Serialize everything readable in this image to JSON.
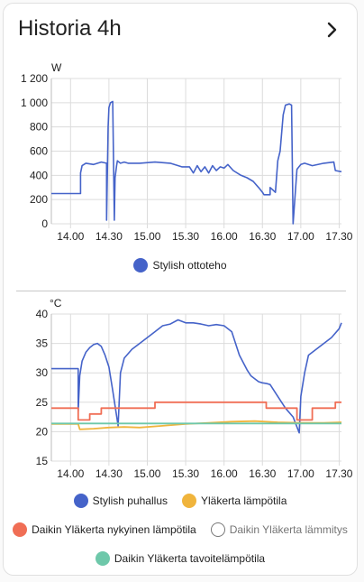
{
  "card": {
    "title": "Historia 4h",
    "chevron_icon": "chevron-right-icon"
  },
  "colors": {
    "blue": "#4563c9",
    "yellow": "#f0b43c",
    "red": "#f06e55",
    "teal": "#6ec8aa",
    "grid": "#dcdcdc"
  },
  "chart_data": [
    {
      "type": "line",
      "title": "",
      "ylabel": "W",
      "ylim": [
        0,
        1200
      ],
      "yticks": [
        0,
        200,
        400,
        600,
        800,
        1000,
        1200
      ],
      "ytick_labels": [
        "0",
        "200",
        "400",
        "600",
        "800",
        "1 000",
        "1 200"
      ],
      "xlim": [
        13.75,
        17.53
      ],
      "xticks": [
        14.0,
        14.5,
        15.0,
        15.5,
        16.0,
        16.5,
        17.0,
        17.5
      ],
      "xtick_labels": [
        "14.00",
        "14.30",
        "15.00",
        "15.30",
        "16.00",
        "16.30",
        "17.00",
        "17.30"
      ],
      "grid": true,
      "series": [
        {
          "name": "Stylish ottoteho",
          "color": "#4563c9",
          "x": [
            13.75,
            14.13,
            14.13,
            14.15,
            14.2,
            14.3,
            14.4,
            14.47,
            14.47,
            14.49,
            14.5,
            14.52,
            14.55,
            14.57,
            14.58,
            14.6,
            14.61,
            14.65,
            14.7,
            14.75,
            14.9,
            15.1,
            15.3,
            15.45,
            15.55,
            15.6,
            15.65,
            15.7,
            15.75,
            15.8,
            15.85,
            15.9,
            15.95,
            16.0,
            16.05,
            16.12,
            16.22,
            16.3,
            16.38,
            16.45,
            16.5,
            16.52,
            16.57,
            16.6,
            16.6,
            16.67,
            16.7,
            16.73,
            16.77,
            16.8,
            16.85,
            16.88,
            16.9,
            16.95,
            17.0,
            17.05,
            17.15,
            17.3,
            17.43,
            17.45,
            17.53
          ],
          "y": [
            250,
            250,
            420,
            480,
            500,
            490,
            510,
            500,
            30,
            800,
            960,
            1000,
            1010,
            30,
            380,
            480,
            520,
            500,
            510,
            500,
            500,
            510,
            500,
            470,
            470,
            420,
            480,
            430,
            470,
            420,
            480,
            440,
            470,
            460,
            490,
            440,
            400,
            380,
            350,
            300,
            260,
            240,
            240,
            240,
            300,
            260,
            520,
            600,
            900,
            980,
            990,
            980,
            0,
            450,
            490,
            500,
            480,
            500,
            510,
            440,
            430
          ]
        }
      ],
      "legend": [
        "Stylish ottoteho"
      ],
      "legend_position": "bottom"
    },
    {
      "type": "line",
      "title": "",
      "ylabel": "°C",
      "ylim": [
        15,
        40
      ],
      "yticks": [
        15,
        20,
        25,
        30,
        35,
        40
      ],
      "ytick_labels": [
        "15",
        "20",
        "25",
        "30",
        "35",
        "40"
      ],
      "xlim": [
        13.75,
        17.53
      ],
      "xticks": [
        14.0,
        14.5,
        15.0,
        15.5,
        16.0,
        16.5,
        17.0,
        17.5
      ],
      "xtick_labels": [
        "14.00",
        "14.30",
        "15.00",
        "15.30",
        "16.00",
        "16.30",
        "17.00",
        "17.30"
      ],
      "grid": true,
      "series": [
        {
          "name": "Stylish puhallus",
          "color": "#4563c9",
          "x": [
            13.75,
            14.1,
            14.1,
            14.12,
            14.15,
            14.2,
            14.25,
            14.3,
            14.35,
            14.4,
            14.45,
            14.5,
            14.55,
            14.62,
            14.62,
            14.65,
            14.7,
            14.8,
            14.9,
            15.0,
            15.1,
            15.2,
            15.3,
            15.4,
            15.5,
            15.6,
            15.7,
            15.8,
            15.9,
            16.0,
            16.1,
            16.2,
            16.3,
            16.35,
            16.4,
            16.45,
            16.5,
            16.55,
            16.6,
            16.7,
            16.8,
            16.9,
            16.98,
            16.98,
            17.0,
            17.05,
            17.1,
            17.2,
            17.3,
            17.4,
            17.5,
            17.53
          ],
          "y": [
            30.7,
            30.7,
            23.5,
            29.5,
            32.0,
            33.5,
            34.3,
            34.8,
            35.0,
            34.5,
            33.0,
            31.0,
            27.0,
            21.0,
            21.0,
            30.0,
            32.5,
            34.0,
            35.0,
            36.0,
            37.0,
            38.0,
            38.3,
            39.0,
            38.5,
            38.5,
            38.3,
            38.0,
            38.2,
            38.0,
            37.0,
            33.0,
            30.5,
            29.5,
            29.0,
            28.5,
            28.3,
            28.2,
            28.0,
            26.0,
            24.0,
            22.5,
            19.8,
            19.8,
            26.0,
            30.0,
            33.0,
            34.0,
            35.0,
            36.0,
            37.5,
            38.5
          ]
        },
        {
          "name": "Yläkerta lämpötila",
          "color": "#f0b43c",
          "x": [
            13.75,
            14.1,
            14.12,
            14.3,
            14.5,
            14.7,
            14.9,
            15.2,
            15.5,
            15.8,
            16.1,
            16.4,
            16.7,
            17.0,
            17.3,
            17.53
          ],
          "y": [
            21.3,
            21.3,
            20.4,
            20.5,
            20.7,
            20.8,
            20.7,
            21.0,
            21.3,
            21.5,
            21.7,
            21.8,
            21.6,
            21.5,
            21.5,
            21.6
          ]
        },
        {
          "name": "Daikin Yläkerta nykyinen lämpötila",
          "color": "#f06e55",
          "x": [
            13.75,
            14.1,
            14.1,
            14.25,
            14.25,
            14.4,
            14.4,
            14.75,
            14.75,
            15.1,
            15.1,
            16.55,
            16.55,
            16.95,
            16.95,
            17.15,
            17.15,
            17.45,
            17.45,
            17.53
          ],
          "y": [
            24.0,
            24.0,
            22.0,
            22.0,
            23.0,
            23.0,
            24.0,
            24.0,
            24.0,
            24.0,
            25.0,
            25.0,
            24.0,
            24.0,
            22.0,
            22.0,
            24.0,
            24.0,
            25.0,
            25.0
          ]
        },
        {
          "name": "Daikin Yläkerta lämmitys",
          "color": "#ffffff",
          "hidden": true,
          "x": [],
          "y": []
        },
        {
          "name": "Daikin Yläkerta tavoitelämpötila",
          "color": "#6ec8aa",
          "x": [
            13.75,
            17.53
          ],
          "y": [
            21.4,
            21.4
          ]
        }
      ],
      "legend": [
        "Stylish puhallus",
        "Yläkerta lämpötila",
        "Daikin Yläkerta nykyinen lämpötila",
        "Daikin Yläkerta lämmitys",
        "Daikin Yläkerta tavoitelämpötila"
      ],
      "legend_position": "bottom"
    }
  ]
}
